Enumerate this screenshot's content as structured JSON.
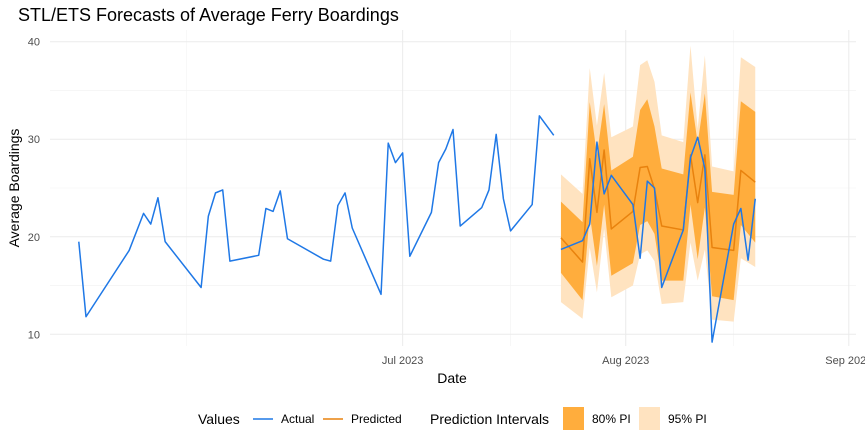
{
  "chart_data": {
    "type": "line",
    "title": "STL/ETS Forecasts of Average Ferry Boardings",
    "xlabel": "Date",
    "ylabel": "Average Boardings",
    "xlim": [
      "2023-05-13",
      "2023-09-02"
    ],
    "ylim": [
      8.8,
      41.2
    ],
    "x_ticks": [
      {
        "date": "2023-07-01",
        "label": "Jul 2023"
      },
      {
        "date": "2023-08-01",
        "label": "Aug 2023"
      },
      {
        "date": "2023-09-01",
        "label": "Sep 2023"
      }
    ],
    "x_minor_ticks": [
      "2023-06-01",
      "2023-07-16",
      "2023-08-16"
    ],
    "y_ticks": [
      10,
      20,
      30,
      40
    ],
    "y_minor_ticks": [
      15,
      25,
      35
    ],
    "grid": true,
    "legend_position": "bottom",
    "series": [
      {
        "name": "Actual",
        "color": "#1f78e6",
        "points": [
          [
            "2023-05-17",
            19.5
          ],
          [
            "2023-05-18",
            11.8
          ],
          [
            "2023-05-24",
            18.6
          ],
          [
            "2023-05-26",
            22.4
          ],
          [
            "2023-05-27",
            21.3
          ],
          [
            "2023-05-28",
            24.0
          ],
          [
            "2023-05-29",
            19.5
          ],
          [
            "2023-06-03",
            14.8
          ],
          [
            "2023-06-04",
            22.1
          ],
          [
            "2023-06-05",
            24.5
          ],
          [
            "2023-06-06",
            24.8
          ],
          [
            "2023-06-07",
            17.5
          ],
          [
            "2023-06-11",
            18.1
          ],
          [
            "2023-06-12",
            22.9
          ],
          [
            "2023-06-13",
            22.6
          ],
          [
            "2023-06-14",
            24.7
          ],
          [
            "2023-06-15",
            19.8
          ],
          [
            "2023-06-20",
            17.7
          ],
          [
            "2023-06-21",
            17.5
          ],
          [
            "2023-06-22",
            23.2
          ],
          [
            "2023-06-23",
            24.5
          ],
          [
            "2023-06-24",
            20.9
          ],
          [
            "2023-06-28",
            14.1
          ],
          [
            "2023-06-29",
            29.6
          ],
          [
            "2023-06-30",
            27.6
          ],
          [
            "2023-07-01",
            28.6
          ],
          [
            "2023-07-02",
            18.0
          ],
          [
            "2023-07-05",
            22.5
          ],
          [
            "2023-07-06",
            27.6
          ],
          [
            "2023-07-07",
            29.0
          ],
          [
            "2023-07-08",
            31.0
          ],
          [
            "2023-07-09",
            21.1
          ],
          [
            "2023-07-12",
            23.0
          ],
          [
            "2023-07-13",
            24.8
          ],
          [
            "2023-07-14",
            30.5
          ],
          [
            "2023-07-15",
            23.9
          ],
          [
            "2023-07-16",
            20.6
          ],
          [
            "2023-07-19",
            23.3
          ],
          [
            "2023-07-20",
            32.4
          ],
          [
            "2023-07-22",
            30.4
          ]
        ]
      },
      {
        "name": "Predicted",
        "color": "#e8820e",
        "points": [
          [
            "2023-07-23",
            19.9
          ],
          [
            "2023-07-26",
            17.4
          ],
          [
            "2023-07-27",
            28.0
          ],
          [
            "2023-07-28",
            22.5
          ],
          [
            "2023-07-29",
            28.9
          ],
          [
            "2023-07-30",
            20.8
          ],
          [
            "2023-08-02",
            22.6
          ],
          [
            "2023-08-03",
            27.1
          ],
          [
            "2023-08-04",
            27.2
          ],
          [
            "2023-08-05",
            24.9
          ],
          [
            "2023-08-06",
            21.1
          ],
          [
            "2023-08-09",
            20.7
          ],
          [
            "2023-08-10",
            28.4
          ],
          [
            "2023-08-11",
            23.5
          ],
          [
            "2023-08-12",
            28.4
          ],
          [
            "2023-08-13",
            18.9
          ],
          [
            "2023-08-16",
            18.6
          ],
          [
            "2023-08-17",
            26.8
          ],
          [
            "2023-08-19",
            25.6
          ]
        ]
      },
      {
        "name": "Actual (forecast period)",
        "color": "#1f78e6",
        "points": [
          [
            "2023-07-23",
            18.7
          ],
          [
            "2023-07-26",
            19.6
          ],
          [
            "2023-07-27",
            21.3
          ],
          [
            "2023-07-28",
            29.7
          ],
          [
            "2023-07-29",
            24.4
          ],
          [
            "2023-07-30",
            26.3
          ],
          [
            "2023-08-02",
            23.3
          ],
          [
            "2023-08-03",
            17.8
          ],
          [
            "2023-08-04",
            25.7
          ],
          [
            "2023-08-05",
            25.0
          ],
          [
            "2023-08-06",
            14.8
          ],
          [
            "2023-08-09",
            20.7
          ],
          [
            "2023-08-10",
            28.1
          ],
          [
            "2023-08-11",
            30.2
          ],
          [
            "2023-08-12",
            27.0
          ],
          [
            "2023-08-13",
            9.2
          ],
          [
            "2023-08-16",
            21.3
          ],
          [
            "2023-08-17",
            22.9
          ],
          [
            "2023-08-18",
            17.6
          ],
          [
            "2023-08-19",
            23.9
          ]
        ]
      }
    ],
    "intervals": {
      "dates": [
        "2023-07-23",
        "2023-07-26",
        "2023-07-27",
        "2023-07-28",
        "2023-07-29",
        "2023-07-30",
        "2023-08-02",
        "2023-08-03",
        "2023-08-04",
        "2023-08-05",
        "2023-08-06",
        "2023-08-09",
        "2023-08-10",
        "2023-08-11",
        "2023-08-12",
        "2023-08-13",
        "2023-08-16",
        "2023-08-17",
        "2023-08-19"
      ],
      "pi80": {
        "name": "80% PI",
        "color": "#ffad3d",
        "lower": [
          16.3,
          13.5,
          22.3,
          17.0,
          23.3,
          16.0,
          17.3,
          21.2,
          21.6,
          20.3,
          15.5,
          15.5,
          23.3,
          17.7,
          23.0,
          13.9,
          13.5,
          21.2,
          19.4
        ],
        "upper": [
          23.6,
          21.5,
          33.8,
          28.4,
          33.6,
          26.8,
          28.2,
          33.0,
          34.1,
          31.3,
          27.0,
          26.4,
          34.8,
          29.6,
          34.7,
          24.6,
          24.3,
          33.9,
          32.8
        ]
      },
      "pi95": {
        "name": "95% PI",
        "color": "#ffe3c0",
        "lower": [
          13.3,
          11.6,
          18.9,
          14.3,
          20.8,
          13.8,
          15.0,
          18.2,
          18.6,
          17.5,
          13.1,
          13.3,
          19.4,
          15.5,
          18.7,
          11.5,
          11.3,
          17.8,
          16.9
        ],
        "upper": [
          26.4,
          24.4,
          37.3,
          31.4,
          36.8,
          30.2,
          31.3,
          37.6,
          38.1,
          35.9,
          30.4,
          29.7,
          39.6,
          31.1,
          38.6,
          27.2,
          26.7,
          38.4,
          37.4
        ]
      }
    },
    "legend": {
      "values_title": "Values",
      "values_items": [
        "Actual",
        "Predicted"
      ],
      "intervals_title": "Prediction Intervals",
      "intervals_items": [
        "80% PI",
        "95% PI"
      ]
    }
  }
}
